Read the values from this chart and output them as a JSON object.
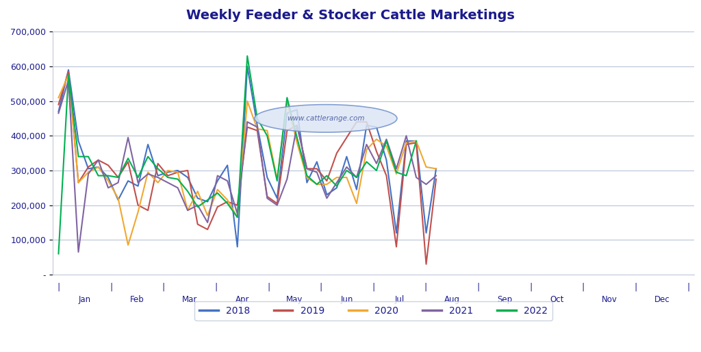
{
  "title": "Weekly Feeder & Stocker Cattle Marketings",
  "title_color": "#1a1a8c",
  "background_color": "#ffffff",
  "plot_bg_color": "#ffffff",
  "grid_color": "#b8c4d8",
  "ylim": [
    0,
    700000
  ],
  "yticks": [
    0,
    100000,
    200000,
    300000,
    400000,
    500000,
    600000,
    700000
  ],
  "month_labels": [
    "Jan",
    "Feb",
    "Mar",
    "Apr",
    "May",
    "Jun",
    "Jul",
    "Aug",
    "Sep",
    "Oct",
    "Nov",
    "Dec"
  ],
  "n_weeks": 53,
  "series": {
    "2018": {
      "color": "#4472c4",
      "data": [
        470000,
        590000,
        385000,
        305000,
        310000,
        280000,
        215000,
        270000,
        255000,
        375000,
        285000,
        295000,
        300000,
        280000,
        220000,
        210000,
        270000,
        315000,
        80000,
        600000,
        430000,
        280000,
        220000,
        465000,
        475000,
        265000,
        325000,
        230000,
        250000,
        340000,
        245000,
        430000,
        425000,
        330000,
        120000,
        385000,
        385000,
        120000,
        305000,
        null,
        null,
        null,
        null,
        null,
        null,
        null,
        null,
        null,
        null,
        null,
        null,
        null,
        null
      ]
    },
    "2019": {
      "color": "#c0504d",
      "data": [
        490000,
        585000,
        265000,
        310000,
        330000,
        315000,
        280000,
        325000,
        200000,
        185000,
        320000,
        285000,
        295000,
        300000,
        145000,
        130000,
        195000,
        210000,
        200000,
        425000,
        415000,
        225000,
        205000,
        415000,
        430000,
        305000,
        305000,
        270000,
        350000,
        395000,
        440000,
        440000,
        355000,
        285000,
        80000,
        375000,
        380000,
        30000,
        275000,
        null,
        null,
        null,
        null,
        null,
        null,
        null,
        null,
        null,
        null,
        null,
        null,
        null,
        null
      ]
    },
    "2020": {
      "color": "#f0a830",
      "data": [
        510000,
        575000,
        265000,
        295000,
        310000,
        270000,
        220000,
        85000,
        180000,
        295000,
        265000,
        300000,
        295000,
        185000,
        240000,
        170000,
        245000,
        215000,
        165000,
        500000,
        420000,
        415000,
        275000,
        500000,
        380000,
        280000,
        260000,
        260000,
        280000,
        280000,
        205000,
        360000,
        390000,
        370000,
        290000,
        380000,
        385000,
        310000,
        305000,
        null,
        null,
        null,
        null,
        null,
        null,
        null,
        null,
        null,
        null,
        null,
        null,
        null,
        null
      ]
    },
    "2021": {
      "color": "#8064a2",
      "data": [
        465000,
        560000,
        65000,
        290000,
        330000,
        250000,
        265000,
        395000,
        265000,
        290000,
        280000,
        265000,
        250000,
        185000,
        200000,
        150000,
        285000,
        270000,
        175000,
        440000,
        425000,
        220000,
        200000,
        275000,
        430000,
        305000,
        295000,
        220000,
        265000,
        310000,
        280000,
        375000,
        320000,
        390000,
        305000,
        400000,
        280000,
        260000,
        285000,
        null,
        null,
        null,
        null,
        null,
        null,
        null,
        null,
        null,
        null,
        null,
        null,
        null,
        null
      ]
    },
    "2022": {
      "color": "#00b050",
      "data": [
        60000,
        575000,
        340000,
        340000,
        285000,
        285000,
        280000,
        335000,
        280000,
        340000,
        305000,
        280000,
        275000,
        240000,
        195000,
        215000,
        235000,
        205000,
        165000,
        630000,
        450000,
        400000,
        270000,
        510000,
        395000,
        285000,
        260000,
        285000,
        255000,
        300000,
        280000,
        325000,
        300000,
        385000,
        295000,
        285000,
        385000,
        null,
        null,
        null,
        null,
        null,
        null,
        null,
        null,
        null,
        null,
        null,
        null,
        null,
        null,
        null,
        null
      ]
    }
  },
  "watermark_text": "www.cattlerange.com",
  "axis_label_color": "#1a1a8c",
  "tick_label_color": "#1a1a8c",
  "legend_years": [
    "2018",
    "2019",
    "2020",
    "2021",
    "2022"
  ],
  "legend_colors": [
    "#4472c4",
    "#c0504d",
    "#f0a830",
    "#8064a2",
    "#00b050"
  ]
}
